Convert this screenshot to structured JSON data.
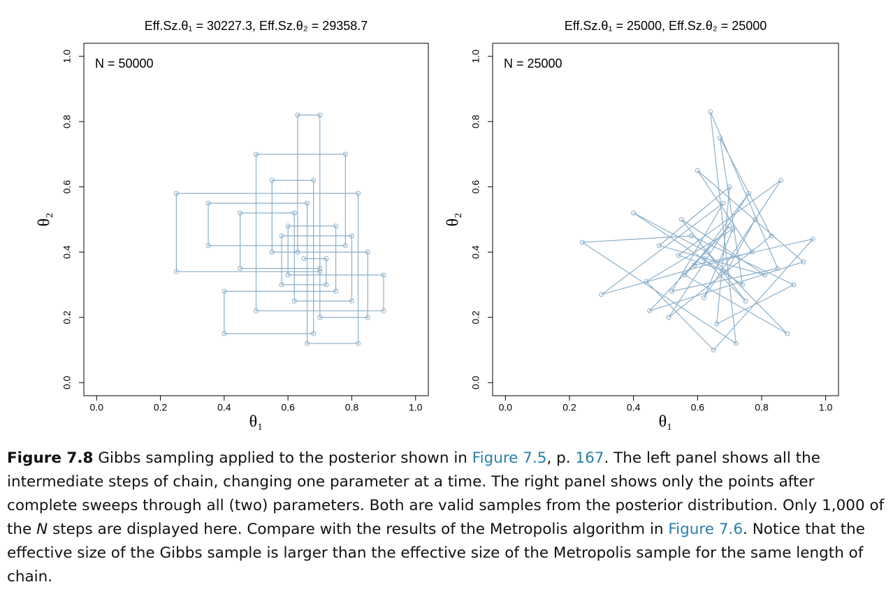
{
  "chart_data": [
    {
      "type": "line",
      "title": "Eff.Sz.θ₁ = 30227.3, Eff.Sz.θ₂ = 29358.7",
      "annotation": "N = 50000",
      "xlabel": "θ₁",
      "ylabel": "θ₂",
      "marker": "circle",
      "xlim": [
        -0.04,
        1.04
      ],
      "ylim": [
        -0.04,
        1.04
      ],
      "xticks": [
        {
          "value": 0,
          "label": "0.0"
        },
        0.2,
        0.4,
        0.6,
        0.8,
        {
          "value": 1,
          "label": "1.0"
        }
      ],
      "yticks": [
        {
          "value": 0,
          "label": "0.0"
        },
        0.2,
        0.4,
        0.6,
        0.8,
        {
          "value": 1,
          "label": "1.0"
        }
      ],
      "series": [
        {
          "color": "#8cafc9",
          "x": [
            0.65,
            0.72,
            0.72,
            0.58,
            0.58,
            0.8,
            0.8,
            0.62,
            0.62,
            0.45,
            0.45,
            0.7,
            0.7,
            0.85,
            0.85,
            0.55,
            0.55,
            0.68,
            0.68,
            0.4,
            0.4,
            0.75,
            0.75,
            0.6,
            0.6,
            0.9,
            0.9,
            0.5,
            0.5,
            0.78,
            0.78,
            0.35,
            0.35,
            0.66,
            0.66,
            0.82,
            0.82,
            0.25,
            0.25,
            0.7,
            0.7,
            0.63,
            0.63
          ],
          "values": [
            0.38,
            0.38,
            0.3,
            0.3,
            0.45,
            0.45,
            0.25,
            0.25,
            0.52,
            0.52,
            0.35,
            0.35,
            0.2,
            0.2,
            0.4,
            0.4,
            0.62,
            0.62,
            0.15,
            0.15,
            0.28,
            0.28,
            0.48,
            0.48,
            0.33,
            0.33,
            0.22,
            0.22,
            0.7,
            0.7,
            0.42,
            0.42,
            0.55,
            0.55,
            0.12,
            0.12,
            0.58,
            0.58,
            0.34,
            0.34,
            0.82,
            0.82,
            0.4
          ]
        }
      ]
    },
    {
      "type": "line",
      "title": "Eff.Sz.θ₁ = 25000, Eff.Sz.θ₂ = 25000",
      "annotation": "N = 25000",
      "xlabel": "θ₁",
      "ylabel": "θ₂",
      "marker": "circle",
      "xlim": [
        -0.04,
        1.04
      ],
      "ylim": [
        -0.04,
        1.04
      ],
      "xticks": [
        {
          "value": 0,
          "label": "0.0"
        },
        0.2,
        0.4,
        0.6,
        0.8,
        {
          "value": 1,
          "label": "1.0"
        }
      ],
      "yticks": [
        {
          "value": 0,
          "label": "0.0"
        },
        0.2,
        0.4,
        0.6,
        0.8,
        {
          "value": 1,
          "label": "1.0"
        }
      ],
      "series": [
        {
          "color": "#8cafc9",
          "x": [
            0.62,
            0.75,
            0.55,
            0.81,
            0.48,
            0.7,
            0.66,
            0.9,
            0.58,
            0.24,
            0.72,
            0.64,
            0.85,
            0.52,
            0.68,
            0.3,
            0.77,
            0.6,
            0.93,
            0.45,
            0.7,
            0.56,
            0.88,
            0.63,
            0.4,
            0.74,
            0.67,
            0.83,
            0.51,
            0.76,
            0.59,
            0.96,
            0.65,
            0.44,
            0.71,
            0.62,
            0.86,
            0.54,
            0.69,
            0.78
          ],
          "values": [
            0.38,
            0.25,
            0.5,
            0.33,
            0.42,
            0.6,
            0.18,
            0.3,
            0.45,
            0.43,
            0.12,
            0.83,
            0.35,
            0.28,
            0.55,
            0.27,
            0.4,
            0.65,
            0.37,
            0.22,
            0.48,
            0.33,
            0.15,
            0.4,
            0.52,
            0.3,
            0.75,
            0.45,
            0.2,
            0.58,
            0.36,
            0.44,
            0.1,
            0.31,
            0.47,
            0.26,
            0.62,
            0.39,
            0.34,
            0.5
          ]
        }
      ]
    }
  ],
  "caption": [
    {
      "text": "Figure 7.8",
      "style": "bold"
    },
    {
      "text": "  Gibbs sampling applied to the posterior shown in ",
      "style": "plain"
    },
    {
      "text": "Figure 7.5",
      "style": "link"
    },
    {
      "text": ", p. ",
      "style": "plain"
    },
    {
      "text": "167",
      "style": "link"
    },
    {
      "text": ". The left panel shows all the intermediate steps of chain, changing one parameter at a time. The right panel shows only the points after complete sweeps through all (two) parameters. Both are valid samples from the posterior distribution. Only 1,000 of the ",
      "style": "plain"
    },
    {
      "text": "N",
      "style": "italic"
    },
    {
      "text": " steps are displayed here. Compare with the results of the Metropolis algorithm in ",
      "style": "plain"
    },
    {
      "text": "Figure 7.6",
      "style": "link"
    },
    {
      "text": ". Notice that the effective size of the Gibbs sample is larger than the effective size of the Metropolis sample for the same length of chain.",
      "style": "plain"
    }
  ]
}
